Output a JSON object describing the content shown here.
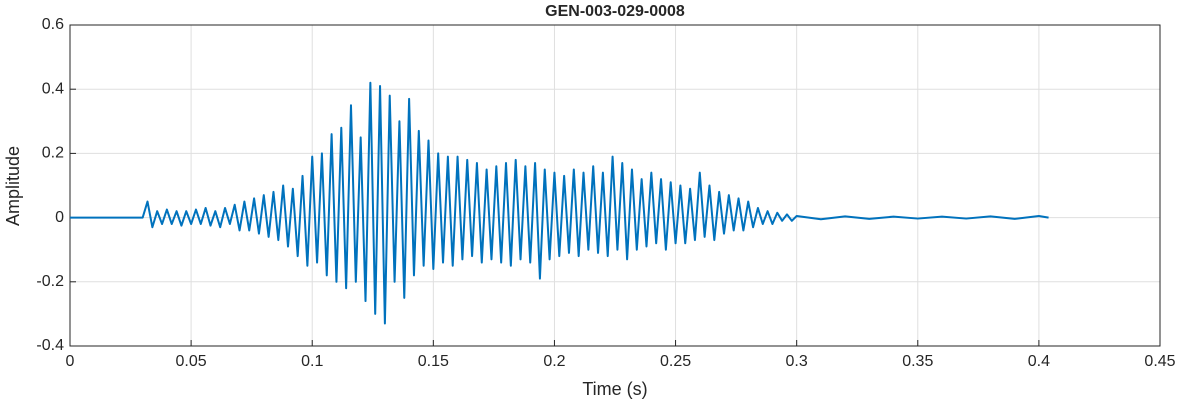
{
  "chart_data": {
    "type": "line",
    "title": "GEN-003-029-0008",
    "x_label": "Time (s)",
    "y_label": "Amplitude",
    "x": [
      0,
      0.01,
      0.02,
      0.03,
      0.032,
      0.034,
      0.036,
      0.038,
      0.04,
      0.042,
      0.044,
      0.046,
      0.048,
      0.05,
      0.052,
      0.054,
      0.056,
      0.058,
      0.06,
      0.062,
      0.064,
      0.066,
      0.068,
      0.07,
      0.072,
      0.074,
      0.076,
      0.078,
      0.08,
      0.082,
      0.084,
      0.086,
      0.088,
      0.09,
      0.092,
      0.094,
      0.096,
      0.098,
      0.1,
      0.102,
      0.104,
      0.106,
      0.108,
      0.11,
      0.112,
      0.114,
      0.116,
      0.118,
      0.12,
      0.122,
      0.124,
      0.126,
      0.128,
      0.13,
      0.132,
      0.134,
      0.136,
      0.138,
      0.14,
      0.142,
      0.144,
      0.146,
      0.148,
      0.15,
      0.152,
      0.154,
      0.156,
      0.158,
      0.16,
      0.162,
      0.164,
      0.166,
      0.168,
      0.17,
      0.172,
      0.174,
      0.176,
      0.178,
      0.18,
      0.182,
      0.184,
      0.186,
      0.188,
      0.19,
      0.192,
      0.194,
      0.196,
      0.198,
      0.2,
      0.202,
      0.204,
      0.206,
      0.208,
      0.21,
      0.212,
      0.214,
      0.216,
      0.218,
      0.22,
      0.222,
      0.224,
      0.226,
      0.228,
      0.23,
      0.232,
      0.234,
      0.236,
      0.238,
      0.24,
      0.242,
      0.244,
      0.246,
      0.248,
      0.25,
      0.252,
      0.254,
      0.256,
      0.258,
      0.26,
      0.262,
      0.264,
      0.266,
      0.268,
      0.27,
      0.272,
      0.274,
      0.276,
      0.278,
      0.28,
      0.282,
      0.284,
      0.286,
      0.288,
      0.29,
      0.292,
      0.294,
      0.296,
      0.298,
      0.3,
      0.31,
      0.32,
      0.33,
      0.34,
      0.35,
      0.36,
      0.37,
      0.38,
      0.39,
      0.4,
      0.404
    ],
    "series": [
      {
        "color": "#0072bd",
        "values": [
          0,
          0,
          0,
          0,
          0.05,
          -0.03,
          0.02,
          -0.02,
          0.025,
          -0.02,
          0.02,
          -0.025,
          0.02,
          -0.02,
          0.025,
          -0.02,
          0.03,
          -0.025,
          0.02,
          -0.03,
          0.03,
          -0.02,
          0.04,
          -0.04,
          0.05,
          -0.04,
          0.06,
          -0.05,
          0.07,
          -0.06,
          0.08,
          -0.07,
          0.1,
          -0.09,
          0.09,
          -0.12,
          0.13,
          -0.15,
          0.19,
          -0.14,
          0.2,
          -0.18,
          0.26,
          -0.2,
          0.28,
          -0.22,
          0.35,
          -0.2,
          0.25,
          -0.26,
          0.42,
          -0.3,
          0.41,
          -0.33,
          0.38,
          -0.2,
          0.3,
          -0.25,
          0.37,
          -0.18,
          0.27,
          -0.15,
          0.24,
          -0.16,
          0.2,
          -0.14,
          0.19,
          -0.15,
          0.19,
          -0.13,
          0.18,
          -0.12,
          0.17,
          -0.14,
          0.15,
          -0.13,
          0.16,
          -0.14,
          0.17,
          -0.15,
          0.18,
          -0.13,
          0.16,
          -0.14,
          0.17,
          -0.19,
          0.15,
          -0.13,
          0.14,
          -0.12,
          0.13,
          -0.11,
          0.15,
          -0.12,
          0.14,
          -0.1,
          0.16,
          -0.11,
          0.14,
          -0.12,
          0.19,
          -0.1,
          0.17,
          -0.13,
          0.15,
          -0.1,
          0.12,
          -0.09,
          0.14,
          -0.08,
          0.12,
          -0.1,
          0.11,
          -0.08,
          0.1,
          -0.08,
          0.09,
          -0.07,
          0.14,
          -0.06,
          0.1,
          -0.07,
          0.08,
          -0.05,
          0.07,
          -0.04,
          0.06,
          -0.04,
          0.05,
          -0.03,
          0.03,
          -0.02,
          0.02,
          -0.02,
          0.015,
          -0.01,
          0.01,
          -0.01,
          0.005,
          -0.005,
          0.004,
          -0.004,
          0.003,
          -0.003,
          0.003,
          -0.003,
          0.004,
          -0.004,
          0.005,
          0
        ]
      }
    ],
    "xlim": [
      0,
      0.45
    ],
    "xticks": [
      0,
      0.05,
      0.1,
      0.15,
      0.2,
      0.25,
      0.3,
      0.35,
      0.4,
      0.45
    ],
    "ylim": [
      -0.4,
      0.6
    ],
    "yticks": [
      -0.4,
      -0.2,
      0,
      0.2,
      0.4,
      0.6
    ],
    "grid": true
  }
}
